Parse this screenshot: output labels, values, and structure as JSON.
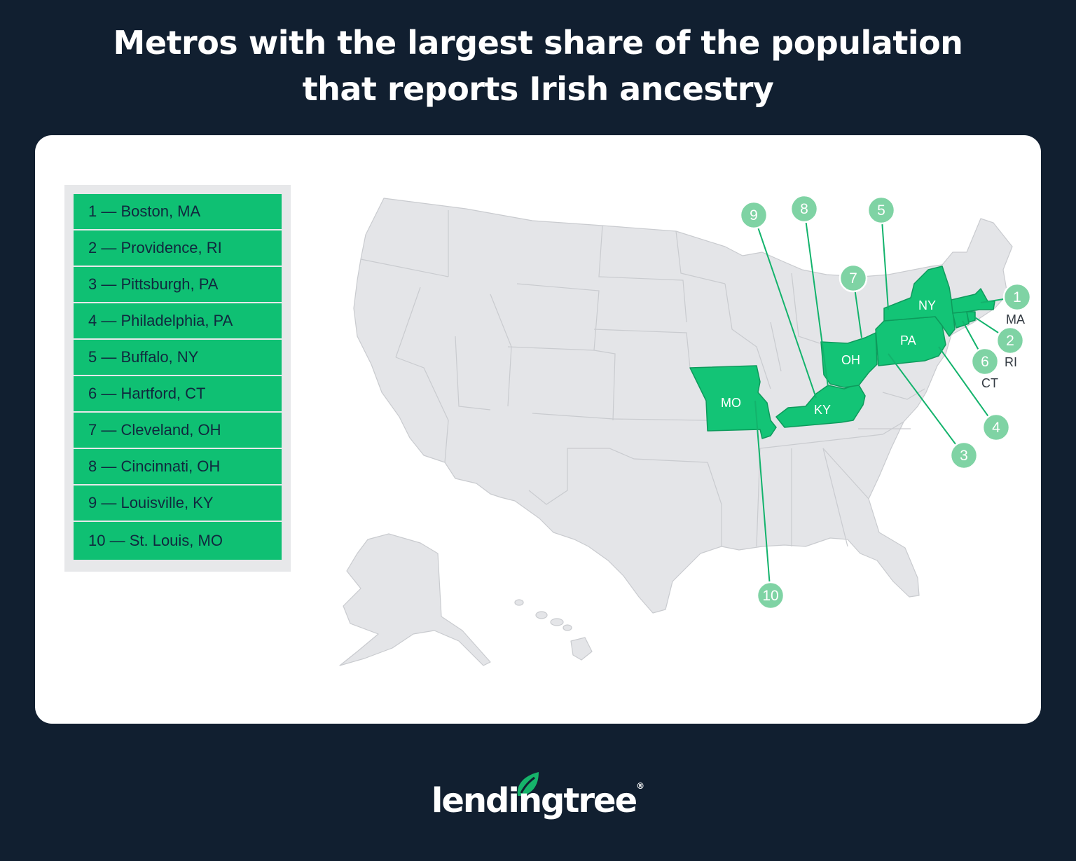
{
  "title": {
    "line1": "Metros with the largest share of the population",
    "line2": "that reports Irish ancestry"
  },
  "legend": {
    "items": [
      "1 — Boston, MA",
      "2 — Providence, RI",
      "3 — Pittsburgh, PA",
      "4 — Philadelphia, PA",
      "5 — Buffalo, NY",
      "6 — Hartford, CT",
      "7 — Cleveland, OH",
      "8 — Cincinnati, OH",
      "9 — Louisville, KY",
      "10 — St. Louis, MO"
    ]
  },
  "map": {
    "highlighted_states": [
      "MA",
      "RI",
      "CT",
      "NY",
      "PA",
      "OH",
      "KY",
      "MO"
    ],
    "state_labels": {
      "ny": "NY",
      "pa": "PA",
      "oh": "OH",
      "ky": "KY",
      "mo": "MO",
      "ma": "MA",
      "ri": "RI",
      "ct": "CT"
    },
    "markers": [
      "1",
      "2",
      "3",
      "4",
      "5",
      "6",
      "7",
      "8",
      "9",
      "10"
    ],
    "colors": {
      "highlight": "#13c476",
      "marker": "#7fd3a4",
      "base": "#e4e5e8"
    }
  },
  "brand": {
    "name": "lendingtree",
    "mark": "®"
  }
}
